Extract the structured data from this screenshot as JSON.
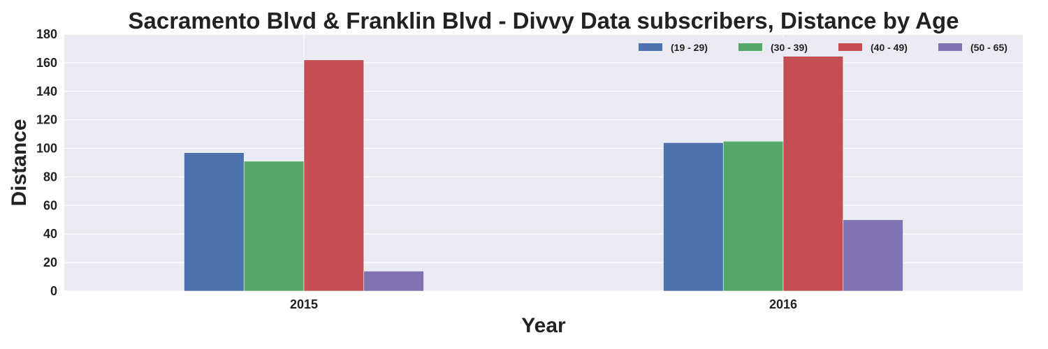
{
  "chart_data": {
    "type": "bar",
    "title": "Sacramento Blvd & Franklin Blvd - Divvy Data subscribers, Distance by Age",
    "xlabel": "Year",
    "ylabel": "Distance",
    "categories": [
      "2015",
      "2016"
    ],
    "series": [
      {
        "name": "(19 - 29)",
        "color": "#4c72b0",
        "values": [
          97,
          104
        ]
      },
      {
        "name": "(30 - 39)",
        "color": "#55a868",
        "values": [
          91,
          105
        ]
      },
      {
        "name": "(40 - 49)",
        "color": "#c44e52",
        "values": [
          162,
          165
        ]
      },
      {
        "name": "(50 - 65)",
        "color": "#8172b2",
        "values": [
          14,
          50
        ]
      }
    ],
    "ylim": [
      0,
      180
    ],
    "yticks": [
      0,
      20,
      40,
      60,
      80,
      100,
      120,
      140,
      160,
      180
    ],
    "grid": true,
    "legend_position": "top-right",
    "background_color": "#eaeaf2"
  }
}
